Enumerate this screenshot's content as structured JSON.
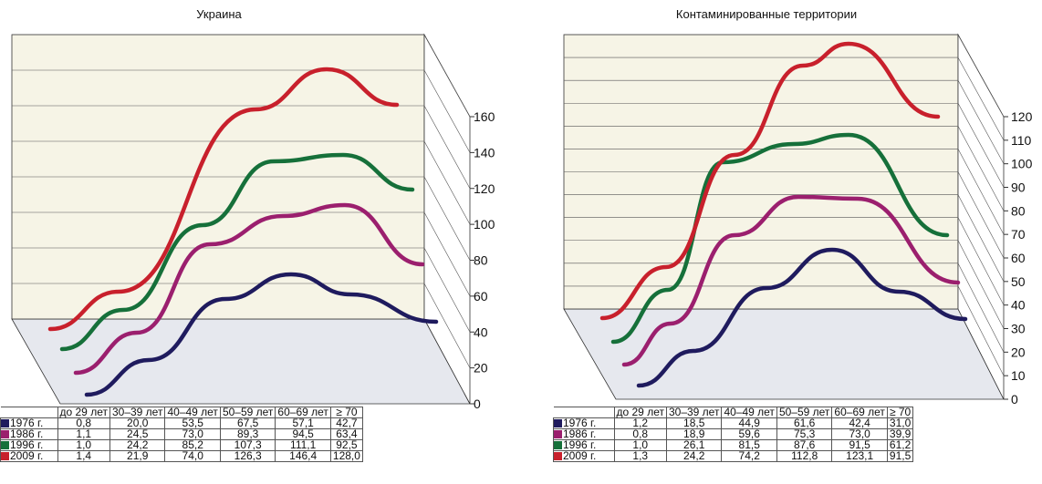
{
  "chart_data": [
    {
      "type": "line",
      "title": "Украина",
      "categories": [
        "до 29 лет",
        "30–39 лет",
        "40–49 лет",
        "50–59 лет",
        "60–69 лет",
        "≥ 70"
      ],
      "yticks": [
        "0",
        "20",
        "40",
        "60",
        "80",
        "100",
        "120",
        "140",
        "160"
      ],
      "ylim": [
        0,
        160
      ],
      "series": [
        {
          "name": "1976 г.",
          "color": "#1f1b5e",
          "values": [
            0.8,
            20.0,
            53.5,
            67.5,
            57.1,
            42.7
          ],
          "labels": [
            "0,8",
            "20,0",
            "53,5",
            "67,5",
            "57,1",
            "42,7"
          ]
        },
        {
          "name": "1986 г.",
          "color": "#9b1f6e",
          "values": [
            1.1,
            24.5,
            73.0,
            89.3,
            94.5,
            63.4
          ],
          "labels": [
            "1,1",
            "24,5",
            "73,0",
            "89,3",
            "94,5",
            "63,4"
          ]
        },
        {
          "name": "1996 г.",
          "color": "#16703a",
          "values": [
            1.0,
            24.2,
            85.2,
            107.3,
            111.1,
            92.5
          ],
          "labels": [
            "1,0",
            "24,2",
            "85,2",
            "107,3",
            "111,1",
            "92,5"
          ]
        },
        {
          "name": "2009 г.",
          "color": "#c8202c",
          "values": [
            1.4,
            21.9,
            74.0,
            126.3,
            146.4,
            128.0
          ],
          "labels": [
            "1,4",
            "21,9",
            "74,0",
            "126,3",
            "146,4",
            "128,0"
          ]
        }
      ]
    },
    {
      "type": "line",
      "title": "Контаминированные территории",
      "categories": [
        "до 29 лет",
        "30–39 лет",
        "40–49 лет",
        "50–59 лет",
        "60–69 лет",
        "≥ 70"
      ],
      "yticks": [
        "0",
        "10",
        "20",
        "30",
        "40",
        "50",
        "60",
        "70",
        "80",
        "90",
        "100",
        "110",
        "120"
      ],
      "ylim": [
        0,
        120
      ],
      "series": [
        {
          "name": "1976 г.",
          "color": "#1f1b5e",
          "values": [
            1.2,
            18.5,
            44.9,
            61.6,
            42.4,
            31.0
          ],
          "labels": [
            "1,2",
            "18,5",
            "44,9",
            "61,6",
            "42,4",
            "31,0"
          ]
        },
        {
          "name": "1986 г.",
          "color": "#9b1f6e",
          "values": [
            0.8,
            18.9,
            59.6,
            75.3,
            73.0,
            39.9
          ],
          "labels": [
            "0,8",
            "18,9",
            "59,6",
            "75,3",
            "73,0",
            "39,9"
          ]
        },
        {
          "name": "1996 г.",
          "color": "#16703a",
          "values": [
            1.0,
            26.1,
            81.5,
            87.6,
            91.5,
            61.2
          ],
          "labels": [
            "1,0",
            "26,1",
            "81,5",
            "87,6",
            "91,5",
            "61,2"
          ]
        },
        {
          "name": "2009 г.",
          "color": "#c8202c",
          "values": [
            1.3,
            24.2,
            74.2,
            112.8,
            123.1,
            91.5
          ],
          "labels": [
            "1,3",
            "24,2",
            "74,2",
            "112,8",
            "123,1",
            "91,5"
          ]
        }
      ]
    }
  ]
}
